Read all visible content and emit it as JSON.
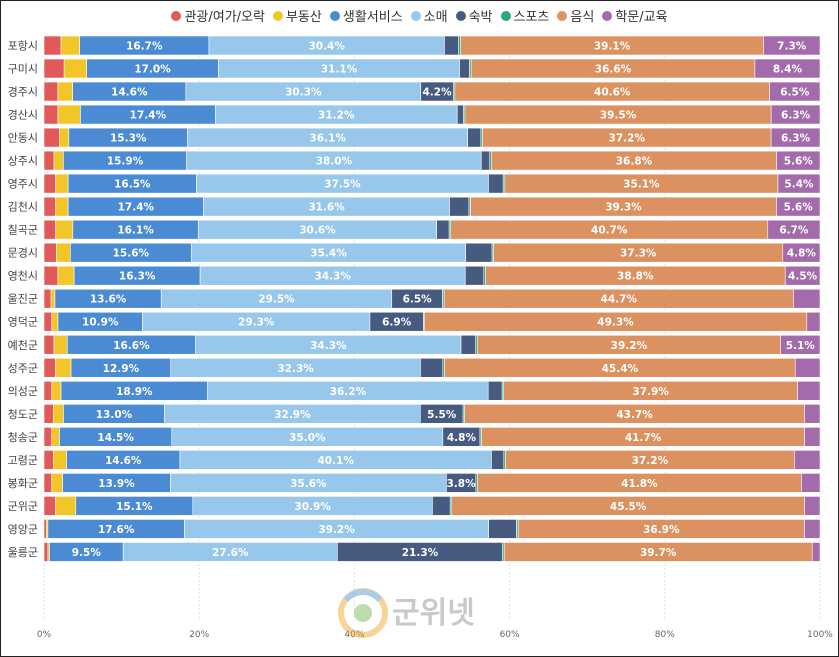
{
  "chart_data": {
    "type": "bar",
    "orientation": "horizontal",
    "stacked": "percent",
    "title": "",
    "xlabel": "",
    "ylabel": "",
    "xlim": [
      0,
      100
    ],
    "x_ticks": [
      "0%",
      "20%",
      "40%",
      "60%",
      "80%",
      "100%"
    ],
    "legend_position": "top",
    "categories": [
      "포항시",
      "구미시",
      "경주시",
      "경산시",
      "안동시",
      "상주시",
      "영주시",
      "김천시",
      "칠곡군",
      "문경시",
      "영천시",
      "울진군",
      "영덕군",
      "예천군",
      "성주군",
      "의성군",
      "청도군",
      "청송군",
      "고령군",
      "봉화군",
      "군위군",
      "영양군",
      "울릉군"
    ],
    "series": [
      {
        "name": "관광/여가/오락",
        "color": "#e05a5a",
        "values": [
          2.2,
          2.6,
          1.8,
          1.8,
          2.0,
          1.3,
          1.5,
          1.5,
          1.5,
          1.6,
          1.8,
          0.9,
          1.0,
          1.3,
          1.5,
          1.0,
          1.2,
          1.0,
          1.2,
          1.0,
          1.5,
          0.3,
          0.5
        ]
      },
      {
        "name": "부동산",
        "color": "#f2c629",
        "values": [
          2.4,
          2.9,
          1.9,
          2.9,
          1.2,
          1.2,
          1.6,
          1.6,
          2.2,
          1.8,
          2.1,
          0.5,
          0.8,
          1.7,
          2.0,
          1.2,
          1.3,
          1.0,
          1.7,
          1.4,
          2.6,
          0.2,
          0.2
        ]
      },
      {
        "name": "생활서비스",
        "color": "#4b8bd4",
        "values": [
          16.7,
          17.0,
          14.6,
          17.4,
          15.3,
          15.9,
          16.5,
          17.4,
          16.1,
          15.6,
          16.3,
          13.6,
          10.9,
          16.6,
          12.9,
          18.9,
          13.0,
          14.5,
          14.6,
          13.9,
          15.1,
          17.6,
          9.5
        ]
      },
      {
        "name": "소매",
        "color": "#97c7ea",
        "values": [
          30.4,
          31.1,
          30.3,
          31.2,
          36.1,
          38.0,
          37.5,
          31.6,
          30.6,
          35.4,
          34.3,
          29.5,
          29.3,
          34.3,
          32.3,
          36.2,
          32.9,
          35.0,
          40.1,
          35.6,
          30.9,
          39.2,
          27.6
        ]
      },
      {
        "name": "숙박",
        "color": "#475a80",
        "values": [
          1.8,
          1.3,
          4.2,
          0.8,
          1.7,
          1.1,
          1.9,
          2.5,
          1.6,
          3.4,
          2.4,
          6.5,
          6.9,
          1.9,
          2.9,
          1.8,
          5.5,
          4.8,
          1.6,
          3.8,
          2.3,
          3.6,
          21.3
        ]
      },
      {
        "name": "스포츠",
        "color": "#2fa77d",
        "values": [
          0.3,
          0.2,
          0.2,
          0.2,
          0.2,
          0.2,
          0.2,
          0.2,
          0.2,
          0.2,
          0.2,
          0.2,
          0.1,
          0.2,
          0.2,
          0.2,
          0.2,
          0.2,
          0.2,
          0.2,
          0.2,
          0.2,
          0.2
        ]
      },
      {
        "name": "음식",
        "color": "#dc9160",
        "values": [
          39.1,
          36.6,
          40.6,
          39.5,
          37.2,
          36.8,
          35.1,
          39.3,
          40.7,
          37.3,
          38.8,
          44.7,
          49.3,
          39.2,
          45.4,
          37.9,
          43.7,
          41.7,
          37.2,
          41.8,
          45.5,
          36.9,
          39.7
        ]
      },
      {
        "name": "학문/교육",
        "color": "#a36aac",
        "values": [
          7.3,
          8.4,
          6.5,
          6.3,
          6.3,
          5.6,
          5.4,
          5.6,
          6.7,
          4.8,
          4.5,
          3.4,
          1.7,
          5.1,
          3.2,
          2.9,
          2.0,
          2.0,
          3.3,
          2.4,
          2.0,
          2.0,
          1.0
        ]
      }
    ]
  },
  "watermark": {
    "text": "군위넷"
  }
}
